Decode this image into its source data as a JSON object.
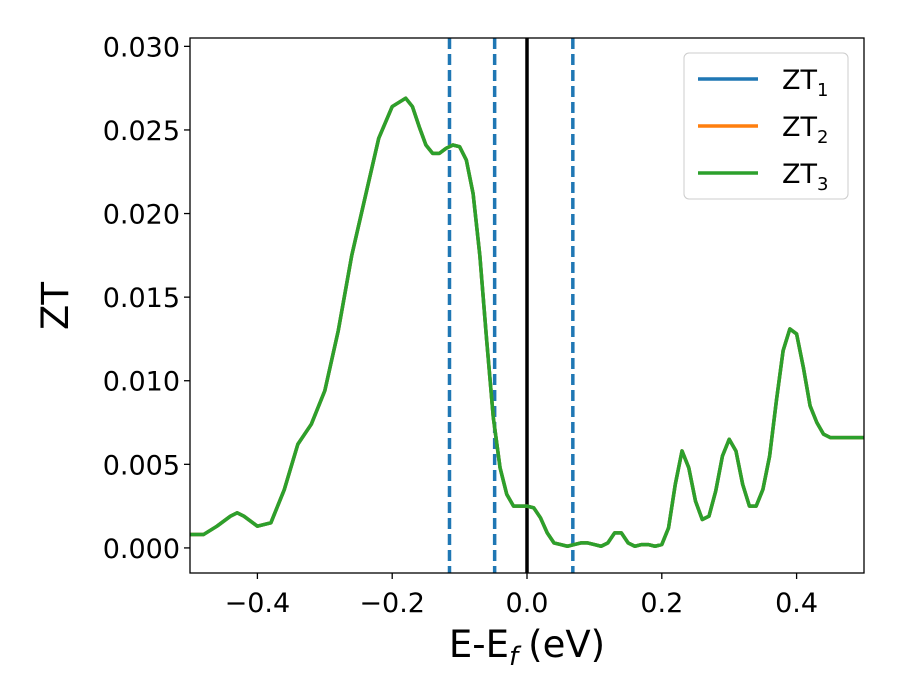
{
  "chart_data": {
    "type": "line",
    "xlabel": "E-E",
    "xlabel_sub": "f",
    "xlabel_unit": "(eV)",
    "ylabel": "ZT",
    "xlim": [
      -0.5,
      0.5
    ],
    "ylim": [
      -0.0015,
      0.0305
    ],
    "xticks": [
      -0.4,
      -0.2,
      0.0,
      0.2,
      0.4
    ],
    "xtick_labels": [
      "−0.4",
      "−0.2",
      "0.0",
      "0.2",
      "0.4"
    ],
    "yticks": [
      0.0,
      0.005,
      0.01,
      0.015,
      0.02,
      0.025,
      0.03
    ],
    "ytick_labels": [
      "0.000",
      "0.005",
      "0.010",
      "0.015",
      "0.020",
      "0.025",
      "0.030"
    ],
    "grid": false,
    "legend_position": "top-right",
    "series": [
      {
        "name": "ZT",
        "name_sub": "1",
        "color": "#1f77b4",
        "x": [
          -0.5,
          -0.48,
          -0.46,
          -0.44,
          -0.43,
          -0.42,
          -0.4,
          -0.38,
          -0.36,
          -0.34,
          -0.32,
          -0.3,
          -0.28,
          -0.26,
          -0.24,
          -0.22,
          -0.2,
          -0.18,
          -0.17,
          -0.16,
          -0.15,
          -0.14,
          -0.13,
          -0.12,
          -0.11,
          -0.1,
          -0.09,
          -0.08,
          -0.07,
          -0.06,
          -0.05,
          -0.04,
          -0.03,
          -0.02,
          -0.01,
          0.0,
          0.01,
          0.02,
          0.03,
          0.04,
          0.05,
          0.06,
          0.07,
          0.08,
          0.09,
          0.1,
          0.11,
          0.12,
          0.13,
          0.14,
          0.15,
          0.16,
          0.17,
          0.18,
          0.19,
          0.2,
          0.21,
          0.22,
          0.23,
          0.24,
          0.25,
          0.26,
          0.27,
          0.28,
          0.29,
          0.3,
          0.31,
          0.32,
          0.33,
          0.34,
          0.35,
          0.36,
          0.37,
          0.38,
          0.39,
          0.4,
          0.41,
          0.42,
          0.43,
          0.44,
          0.45,
          0.46,
          0.47,
          0.48,
          0.49,
          0.5
        ],
        "values": [
          0.0008,
          0.0008,
          0.0013,
          0.0019,
          0.0021,
          0.0019,
          0.0013,
          0.0015,
          0.0035,
          0.0062,
          0.0074,
          0.0094,
          0.013,
          0.0175,
          0.021,
          0.0245,
          0.0264,
          0.0269,
          0.0264,
          0.0252,
          0.0241,
          0.0236,
          0.0236,
          0.0239,
          0.0241,
          0.024,
          0.0232,
          0.0212,
          0.0175,
          0.0125,
          0.0078,
          0.0048,
          0.0032,
          0.0025,
          0.0025,
          0.0025,
          0.0024,
          0.0018,
          0.0009,
          0.0003,
          0.0002,
          0.0001,
          0.0002,
          0.0003,
          0.0003,
          0.0002,
          0.0001,
          0.0003,
          0.0009,
          0.0009,
          0.0003,
          0.0001,
          0.0002,
          0.0002,
          0.0001,
          0.0002,
          0.0012,
          0.0038,
          0.0058,
          0.0048,
          0.0028,
          0.0017,
          0.0019,
          0.0034,
          0.0055,
          0.0065,
          0.0058,
          0.0038,
          0.0025,
          0.0025,
          0.0035,
          0.0055,
          0.0088,
          0.0118,
          0.0131,
          0.0128,
          0.0108,
          0.0085,
          0.0075,
          0.0068,
          0.0066,
          0.0066,
          0.0066,
          0.0066,
          0.0066,
          0.0066
        ]
      },
      {
        "name": "ZT",
        "name_sub": "2",
        "color": "#ff7f0e",
        "x": [
          -0.5,
          -0.48,
          -0.46,
          -0.44,
          -0.43,
          -0.42,
          -0.4,
          -0.38,
          -0.36,
          -0.34,
          -0.32,
          -0.3,
          -0.28,
          -0.26,
          -0.24,
          -0.22,
          -0.2,
          -0.18,
          -0.17,
          -0.16,
          -0.15,
          -0.14,
          -0.13,
          -0.12,
          -0.11,
          -0.1,
          -0.09,
          -0.08,
          -0.07,
          -0.06,
          -0.05,
          -0.04,
          -0.03,
          -0.02,
          -0.01,
          0.0,
          0.01,
          0.02,
          0.03,
          0.04,
          0.05,
          0.06,
          0.07,
          0.08,
          0.09,
          0.1,
          0.11,
          0.12,
          0.13,
          0.14,
          0.15,
          0.16,
          0.17,
          0.18,
          0.19,
          0.2,
          0.21,
          0.22,
          0.23,
          0.24,
          0.25,
          0.26,
          0.27,
          0.28,
          0.29,
          0.3,
          0.31,
          0.32,
          0.33,
          0.34,
          0.35,
          0.36,
          0.37,
          0.38,
          0.39,
          0.4,
          0.41,
          0.42,
          0.43,
          0.44,
          0.45,
          0.46,
          0.47,
          0.48,
          0.49,
          0.5
        ],
        "values": [
          0.0008,
          0.0008,
          0.0013,
          0.0019,
          0.0021,
          0.0019,
          0.0013,
          0.0015,
          0.0035,
          0.0062,
          0.0074,
          0.0094,
          0.013,
          0.0175,
          0.021,
          0.0245,
          0.0264,
          0.0269,
          0.0264,
          0.0252,
          0.0241,
          0.0236,
          0.0236,
          0.0239,
          0.0241,
          0.024,
          0.0232,
          0.0212,
          0.0175,
          0.0125,
          0.0078,
          0.0048,
          0.0032,
          0.0025,
          0.0025,
          0.0025,
          0.0024,
          0.0018,
          0.0009,
          0.0003,
          0.0002,
          0.0001,
          0.0002,
          0.0003,
          0.0003,
          0.0002,
          0.0001,
          0.0003,
          0.0009,
          0.0009,
          0.0003,
          0.0001,
          0.0002,
          0.0002,
          0.0001,
          0.0002,
          0.0012,
          0.0038,
          0.0058,
          0.0048,
          0.0028,
          0.0017,
          0.0019,
          0.0034,
          0.0055,
          0.0065,
          0.0058,
          0.0038,
          0.0025,
          0.0025,
          0.0035,
          0.0055,
          0.0088,
          0.0118,
          0.0131,
          0.0128,
          0.0108,
          0.0085,
          0.0075,
          0.0068,
          0.0066,
          0.0066,
          0.0066,
          0.0066,
          0.0066,
          0.0066
        ]
      },
      {
        "name": "ZT",
        "name_sub": "3",
        "color": "#2ca02c",
        "x": [
          -0.5,
          -0.48,
          -0.46,
          -0.44,
          -0.43,
          -0.42,
          -0.4,
          -0.38,
          -0.36,
          -0.34,
          -0.32,
          -0.3,
          -0.28,
          -0.26,
          -0.24,
          -0.22,
          -0.2,
          -0.18,
          -0.17,
          -0.16,
          -0.15,
          -0.14,
          -0.13,
          -0.12,
          -0.11,
          -0.1,
          -0.09,
          -0.08,
          -0.07,
          -0.06,
          -0.05,
          -0.04,
          -0.03,
          -0.02,
          -0.01,
          0.0,
          0.01,
          0.02,
          0.03,
          0.04,
          0.05,
          0.06,
          0.07,
          0.08,
          0.09,
          0.1,
          0.11,
          0.12,
          0.13,
          0.14,
          0.15,
          0.16,
          0.17,
          0.18,
          0.19,
          0.2,
          0.21,
          0.22,
          0.23,
          0.24,
          0.25,
          0.26,
          0.27,
          0.28,
          0.29,
          0.3,
          0.31,
          0.32,
          0.33,
          0.34,
          0.35,
          0.36,
          0.37,
          0.38,
          0.39,
          0.4,
          0.41,
          0.42,
          0.43,
          0.44,
          0.45,
          0.46,
          0.47,
          0.48,
          0.49,
          0.5
        ],
        "values": [
          0.0008,
          0.0008,
          0.0013,
          0.0019,
          0.0021,
          0.0019,
          0.0013,
          0.0015,
          0.0035,
          0.0062,
          0.0074,
          0.0094,
          0.013,
          0.0175,
          0.021,
          0.0245,
          0.0264,
          0.0269,
          0.0264,
          0.0252,
          0.0241,
          0.0236,
          0.0236,
          0.0239,
          0.0241,
          0.024,
          0.0232,
          0.0212,
          0.0175,
          0.0125,
          0.0078,
          0.0048,
          0.0032,
          0.0025,
          0.0025,
          0.0025,
          0.0024,
          0.0018,
          0.0009,
          0.0003,
          0.0002,
          0.0001,
          0.0002,
          0.0003,
          0.0003,
          0.0002,
          0.0001,
          0.0003,
          0.0009,
          0.0009,
          0.0003,
          0.0001,
          0.0002,
          0.0002,
          0.0001,
          0.0002,
          0.0012,
          0.0038,
          0.0058,
          0.0048,
          0.0028,
          0.0017,
          0.0019,
          0.0034,
          0.0055,
          0.0065,
          0.0058,
          0.0038,
          0.0025,
          0.0025,
          0.0035,
          0.0055,
          0.0088,
          0.0118,
          0.0131,
          0.0128,
          0.0108,
          0.0085,
          0.0075,
          0.0068,
          0.0066,
          0.0066,
          0.0066,
          0.0066,
          0.0066,
          0.0066
        ]
      }
    ],
    "vlines": [
      {
        "x": -0.115,
        "style": "dashed",
        "color": "#1f77b4"
      },
      {
        "x": -0.048,
        "style": "dashed",
        "color": "#1f77b4"
      },
      {
        "x": 0.0,
        "style": "solid",
        "color": "#000000"
      },
      {
        "x": 0.068,
        "style": "dashed",
        "color": "#1f77b4"
      }
    ]
  }
}
